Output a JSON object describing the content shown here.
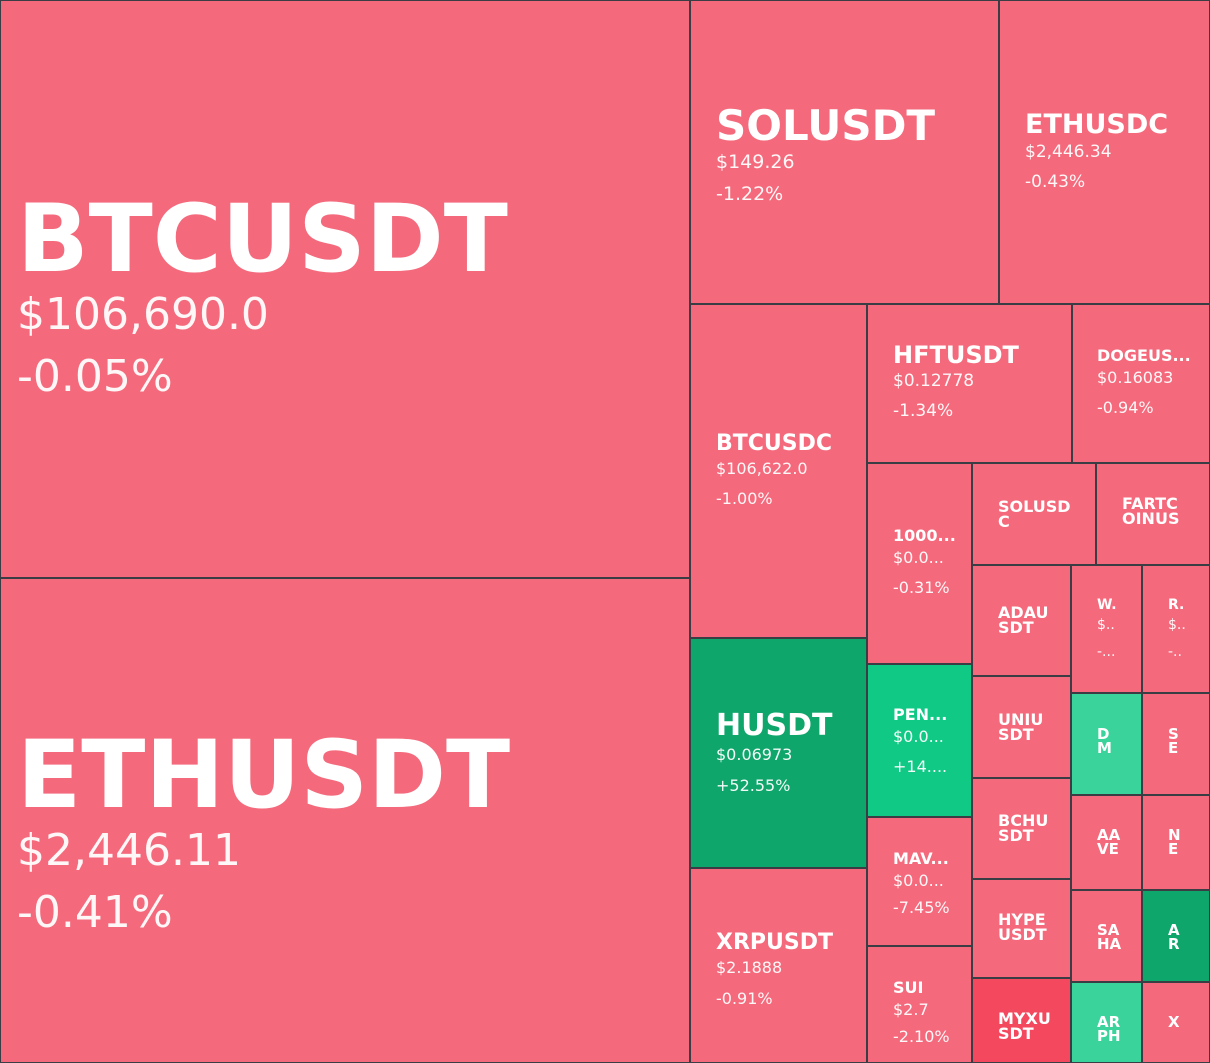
{
  "colors": {
    "red": "#f46a7c",
    "red_dark": "#f4485f",
    "green": "#0ea66b",
    "green_bright": "#10c985",
    "green_light": "#3ad39b"
  },
  "tiles": {
    "btcusdt": {
      "symbol": "BTCUSDT",
      "price": "$106,690.0",
      "change": "-0.05%"
    },
    "ethusdt": {
      "symbol": "ETHUSDT",
      "price": "$2,446.11",
      "change": "-0.41%"
    },
    "solusdt": {
      "symbol": "SOLUSDT",
      "price": "$149.26",
      "change": "-1.22%"
    },
    "ethusdc": {
      "symbol": "ETHUSDC",
      "price": "$2,446.34",
      "change": "-0.43%"
    },
    "btcusdc": {
      "symbol": "BTCUSDC",
      "price": "$106,622.0",
      "change": "-1.00%"
    },
    "hftusdt": {
      "symbol": "HFTUSDT",
      "price": "$0.12778",
      "change": "-1.34%"
    },
    "dogeusdt": {
      "symbol": "DOGEUS...",
      "price": "$0.16083",
      "change": "-0.94%"
    },
    "t1000": {
      "symbol": "1000...",
      "price": "$0.0...",
      "change": "-0.31%"
    },
    "solusdc": {
      "symbol": "SOLUSD C"
    },
    "fartcoin": {
      "symbol": "FARTC OINUS"
    },
    "adausdt": {
      "symbol": "ADAU SDT"
    },
    "w": {
      "symbol": "W.",
      "price": "$..",
      "change": "-..."
    },
    "r": {
      "symbol": "R.",
      "price": "$..",
      "change": "-.."
    },
    "husdt": {
      "symbol": "HUSDT",
      "price": "$0.06973",
      "change": "+52.55%"
    },
    "pen": {
      "symbol": "PEN...",
      "price": "$0.0...",
      "change": "+14...."
    },
    "uniusdt": {
      "symbol": "UNIU SDT"
    },
    "dm": {
      "symbol": "D M"
    },
    "se": {
      "symbol": "S E"
    },
    "mav": {
      "symbol": "MAV...",
      "price": "$0.0...",
      "change": "-7.45%"
    },
    "bchusdt": {
      "symbol": "BCHU SDT"
    },
    "aave": {
      "symbol": "AA VE"
    },
    "ne": {
      "symbol": "N E"
    },
    "xrpusdt": {
      "symbol": "XRPUSDT",
      "price": "$2.1888",
      "change": "-0.91%"
    },
    "hypeusdt": {
      "symbol": "HYPE USDT"
    },
    "saha": {
      "symbol": "SA HA"
    },
    "ar2": {
      "symbol": "A R"
    },
    "sui": {
      "symbol": "SUI",
      "price": "$2.7",
      "change": "-2.10%"
    },
    "myxusdt": {
      "symbol": "MYXU SDT"
    },
    "ar": {
      "symbol": "AR PH"
    },
    "x": {
      "symbol": "X"
    }
  }
}
